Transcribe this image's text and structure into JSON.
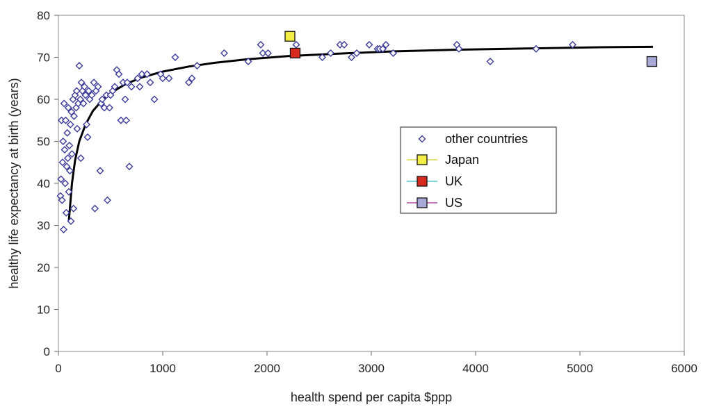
{
  "chart_data": {
    "type": "scatter",
    "title": "",
    "xlabel": "health spend per capita $ppp",
    "ylabel": "healthy life expectancy at birth (years)",
    "xlim": [
      0,
      6000
    ],
    "ylim": [
      0,
      80
    ],
    "x_ticks": [
      0,
      1000,
      2000,
      3000,
      4000,
      5000,
      6000
    ],
    "y_ticks": [
      0,
      10,
      20,
      30,
      40,
      50,
      60,
      70,
      80
    ],
    "grid": false,
    "legend_position": "right-center",
    "colors": {
      "other_countries": "#3a3a9a",
      "japan": "#f2ee44",
      "uk": "#d62a1e",
      "us": "#a9a9d8",
      "trend": "#000000",
      "japan_line": "#d8d840",
      "uk_line": "#58c8d0",
      "us_line": "#b04aa8"
    },
    "series": [
      {
        "name": "other countries",
        "marker": "diamond",
        "points": [
          [
            20,
            37
          ],
          [
            25,
            41
          ],
          [
            30,
            55
          ],
          [
            35,
            36
          ],
          [
            40,
            45
          ],
          [
            45,
            50
          ],
          [
            50,
            29
          ],
          [
            55,
            59
          ],
          [
            60,
            48
          ],
          [
            65,
            40
          ],
          [
            70,
            55
          ],
          [
            75,
            33
          ],
          [
            80,
            44
          ],
          [
            85,
            52
          ],
          [
            90,
            46
          ],
          [
            95,
            58
          ],
          [
            100,
            38
          ],
          [
            105,
            49
          ],
          [
            110,
            43
          ],
          [
            115,
            54
          ],
          [
            120,
            31
          ],
          [
            125,
            57
          ],
          [
            130,
            47
          ],
          [
            140,
            60
          ],
          [
            145,
            34
          ],
          [
            150,
            56
          ],
          [
            160,
            61
          ],
          [
            170,
            58
          ],
          [
            175,
            62
          ],
          [
            180,
            53
          ],
          [
            190,
            59
          ],
          [
            200,
            68
          ],
          [
            210,
            60
          ],
          [
            215,
            46
          ],
          [
            220,
            64
          ],
          [
            230,
            62
          ],
          [
            240,
            59
          ],
          [
            250,
            63
          ],
          [
            260,
            61
          ],
          [
            270,
            54
          ],
          [
            280,
            51
          ],
          [
            290,
            62
          ],
          [
            300,
            60
          ],
          [
            320,
            61
          ],
          [
            340,
            64
          ],
          [
            350,
            34
          ],
          [
            360,
            62
          ],
          [
            380,
            63
          ],
          [
            400,
            43
          ],
          [
            410,
            59
          ],
          [
            420,
            60
          ],
          [
            440,
            58
          ],
          [
            460,
            61
          ],
          [
            470,
            36
          ],
          [
            490,
            58
          ],
          [
            500,
            61
          ],
          [
            520,
            62
          ],
          [
            540,
            63
          ],
          [
            560,
            67
          ],
          [
            580,
            66
          ],
          [
            600,
            55
          ],
          [
            620,
            64
          ],
          [
            640,
            60
          ],
          [
            650,
            55
          ],
          [
            660,
            64
          ],
          [
            680,
            44
          ],
          [
            700,
            63
          ],
          [
            760,
            65
          ],
          [
            780,
            63
          ],
          [
            800,
            66
          ],
          [
            850,
            66
          ],
          [
            880,
            64
          ],
          [
            920,
            60
          ],
          [
            980,
            66
          ],
          [
            1000,
            65
          ],
          [
            1060,
            65
          ],
          [
            1120,
            70
          ],
          [
            1250,
            64
          ],
          [
            1280,
            65
          ],
          [
            1330,
            68
          ],
          [
            1590,
            71
          ],
          [
            1820,
            69
          ],
          [
            1940,
            73
          ],
          [
            1960,
            71
          ],
          [
            2010,
            71
          ],
          [
            2280,
            73
          ],
          [
            2530,
            70
          ],
          [
            2610,
            71
          ],
          [
            2700,
            73
          ],
          [
            2740,
            73
          ],
          [
            2810,
            70
          ],
          [
            2860,
            71
          ],
          [
            2980,
            73
          ],
          [
            3060,
            72
          ],
          [
            3080,
            72
          ],
          [
            3110,
            72
          ],
          [
            3140,
            73
          ],
          [
            3210,
            71
          ],
          [
            3820,
            73
          ],
          [
            3840,
            72
          ],
          [
            4140,
            69
          ],
          [
            4580,
            72
          ],
          [
            4930,
            73
          ]
        ]
      },
      {
        "name": "Japan",
        "marker": "square",
        "points": [
          [
            2220,
            75
          ]
        ]
      },
      {
        "name": "UK",
        "marker": "square",
        "points": [
          [
            2270,
            71
          ]
        ]
      },
      {
        "name": "US",
        "marker": "square",
        "points": [
          [
            5690,
            69
          ]
        ]
      }
    ],
    "trend_curve": {
      "points": [
        [
          100,
          31
        ],
        [
          130,
          40
        ],
        [
          160,
          45.5
        ],
        [
          200,
          50
        ],
        [
          260,
          54
        ],
        [
          330,
          57.2
        ],
        [
          420,
          59.8
        ],
        [
          520,
          61.8
        ],
        [
          650,
          63.7
        ],
        [
          800,
          65.2
        ],
        [
          1000,
          66.6
        ],
        [
          1250,
          67.8
        ],
        [
          1500,
          68.7
        ],
        [
          1800,
          69.5
        ],
        [
          2200,
          70.3
        ],
        [
          2700,
          70.9
        ],
        [
          3200,
          71.4
        ],
        [
          3800,
          71.8
        ],
        [
          4500,
          72.1
        ],
        [
          5200,
          72.4
        ],
        [
          5700,
          72.5
        ]
      ]
    },
    "legend": {
      "items": [
        "other countries",
        "Japan",
        "UK",
        "US"
      ]
    }
  }
}
